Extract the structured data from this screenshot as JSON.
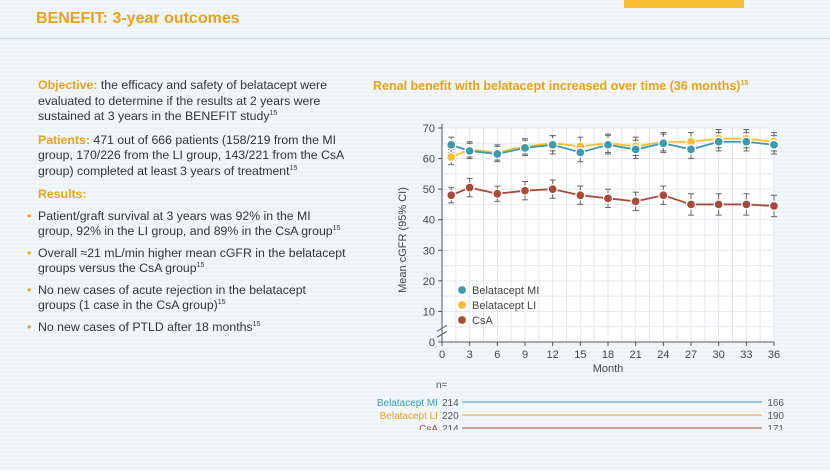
{
  "title": "BENEFIT: 3-year outcomes",
  "objective": {
    "label": "Objective:",
    "text": " the efficacy and safety of belatacept were evaluated to determine if the results at 2 years were sustained at 3 years in the BENEFIT study",
    "ref": "15"
  },
  "patients": {
    "label": "Patients:",
    "text": " 471 out of 666 patients (158/219 from the MI group, 170/226 from the LI group, 143/221 from the CsA group) completed at least 3 years of treatment",
    "ref": "15"
  },
  "results": {
    "label": "Results:",
    "bullets": [
      {
        "text": "Patient/graft survival at 3 years was 92% in the MI group, 92% in the LI group, and 89% in the CsA group",
        "ref": "15"
      },
      {
        "text": "Overall ≈21 mL/min higher mean cGFR in the belatacept groups versus the CsA group",
        "ref": "15"
      },
      {
        "text": "No new cases of acute rejection in the belatacept groups (1 case in the CsA group)",
        "ref": "15"
      },
      {
        "text": "No new cases of PTLD after 18 months",
        "ref": "15"
      }
    ]
  },
  "chart_heading": {
    "text": "Renal benefit with belatacept increased over time (36 months)",
    "ref": "15"
  },
  "chart_data": {
    "type": "line",
    "title": "Renal benefit with belatacept increased over time (36 months)",
    "xlabel": "Month",
    "ylabel": "Mean cGFR (95% CI)",
    "xlim": [
      0,
      36
    ],
    "ylim": [
      0,
      70
    ],
    "xticks": [
      "0",
      "3",
      "6",
      "9",
      "12",
      "15",
      "18",
      "21",
      "24",
      "27",
      "30",
      "33",
      "36"
    ],
    "yticks": [
      "0",
      "10",
      "20",
      "30",
      "40",
      "50",
      "60",
      "70"
    ],
    "grid": true,
    "legend_position": "bottom-left",
    "x": [
      1,
      3,
      6,
      9,
      12,
      15,
      18,
      21,
      24,
      27,
      30,
      33,
      36
    ],
    "series": [
      {
        "name": "Belatacept LI",
        "color": "#f6be32",
        "values": [
          60.5,
          63,
          62,
          64,
          65,
          64,
          65,
          64,
          65.5,
          65.5,
          66.5,
          66.5,
          65.5
        ],
        "error": [
          2.5,
          2.5,
          2.5,
          2.5,
          2.5,
          3,
          3,
          3,
          3,
          3,
          3,
          3,
          3
        ]
      },
      {
        "name": "Belatacept MI",
        "color": "#3d9aad",
        "values": [
          64.5,
          62.5,
          61.5,
          63.5,
          64.5,
          62,
          64.5,
          63,
          65,
          63,
          65.5,
          65.5,
          64.5
        ],
        "error": [
          2.5,
          2.5,
          2.5,
          2.5,
          3,
          3,
          3,
          3,
          3,
          3,
          3,
          3,
          3
        ]
      },
      {
        "name": "CsA",
        "color": "#a8493a",
        "values": [
          48,
          50.5,
          48.5,
          49.5,
          50,
          48,
          47,
          46,
          48,
          45,
          45,
          45,
          44.5
        ],
        "error": [
          2.5,
          3,
          2.5,
          3,
          3,
          3,
          3,
          3,
          3,
          3.5,
          3.5,
          3.5,
          3.5
        ]
      }
    ],
    "n_label": "n=",
    "n_rows": [
      {
        "name": "Belatacept MI",
        "color": "#3d9aad",
        "start": "214",
        "end": "166"
      },
      {
        "name": "Belatacept LI",
        "color": "#e9a21a",
        "start": "220",
        "end": "190"
      },
      {
        "name": "CsA",
        "color": "#a8493a",
        "start": "214",
        "end": "171"
      }
    ],
    "legend": [
      "Belatacept MI",
      "Belatacept LI",
      "CsA"
    ]
  },
  "colors": {
    "accent": "#e9a21a",
    "bar": "#f6be32",
    "mi": "#3d9aad",
    "li": "#f6be32",
    "csa": "#a8493a"
  }
}
